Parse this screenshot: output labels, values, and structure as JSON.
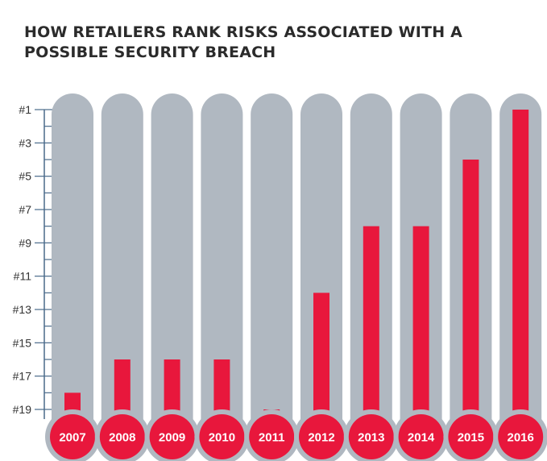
{
  "chart_data": {
    "type": "bar",
    "title_lines": [
      "HOW RETAILERS RANK RISKS ASSOCIATED WITH A",
      "POSSIBLE SECURITY BREACH"
    ],
    "categories": [
      "2007",
      "2008",
      "2009",
      "2010",
      "2011",
      "2012",
      "2013",
      "2014",
      "2015",
      "2016"
    ],
    "values": [
      18,
      16,
      16,
      16,
      19,
      12,
      8,
      8,
      4,
      1
    ],
    "value_meaning": "rank",
    "y_tick_labels": [
      "#1",
      "#3",
      "#5",
      "#7",
      "#9",
      "#11",
      "#13",
      "#15",
      "#17",
      "#19"
    ],
    "y_tick_values": [
      1,
      3,
      5,
      7,
      9,
      11,
      13,
      15,
      17,
      19
    ],
    "ylim": [
      1,
      19
    ],
    "y_inverted": true,
    "style": "thermometer",
    "colors": {
      "mercury": "#e8173c",
      "tube": "#b0b8c1",
      "axis": "#4a6a8a",
      "title": "#2b2b2b"
    }
  }
}
